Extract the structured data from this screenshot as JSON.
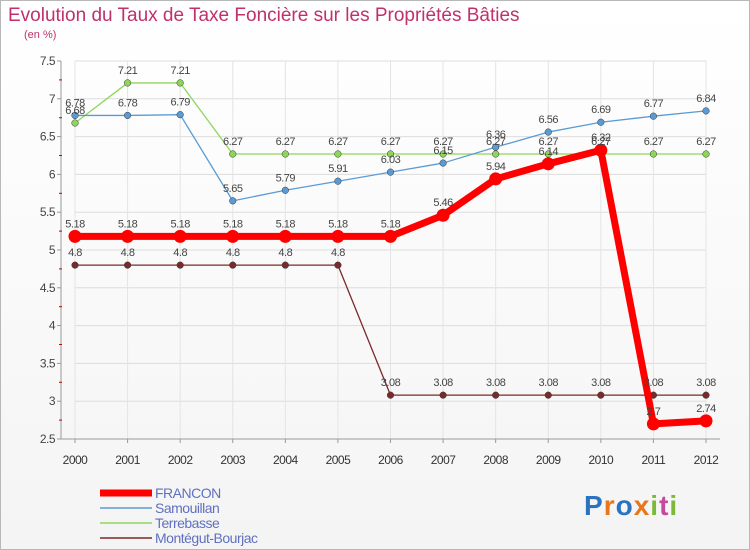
{
  "title": "Evolution du Taux de Taxe Foncière sur les Propriétés Bâties",
  "subtitle": "(en %)",
  "logo": {
    "letters": [
      "P",
      "r",
      "o",
      "x",
      "i",
      "t",
      "i"
    ],
    "colors": [
      "#2a73c0",
      "#e8771c",
      "#2a73c0",
      "#e8771c",
      "#7cb93a",
      "#c44b9c",
      "#7cb93a"
    ]
  },
  "chart_data": {
    "type": "line",
    "title": "Evolution du Taux de Taxe Foncière sur les Propriétés Bâties",
    "ylabel": "(en %)",
    "ylim": [
      2.5,
      7.5
    ],
    "yticks": [
      "2.5",
      "3",
      "3.5",
      "4",
      "4.5",
      "5",
      "5.5",
      "6",
      "6.5",
      "7",
      "7.5"
    ],
    "yticks_values": [
      2.5,
      3,
      3.5,
      4,
      4.5,
      5,
      5.5,
      6,
      6.5,
      7,
      7.5
    ],
    "categories": [
      "2000",
      "2001",
      "2002",
      "2003",
      "2004",
      "2005",
      "2006",
      "2007",
      "2008",
      "2009",
      "2010",
      "2011",
      "2012"
    ],
    "grid": true,
    "series": [
      {
        "name": "FRANCON",
        "color": "#ff0000",
        "values": [
          5.18,
          5.18,
          5.18,
          5.18,
          5.18,
          5.18,
          5.18,
          5.46,
          5.94,
          6.14,
          6.32,
          2.7,
          2.74
        ],
        "labels": [
          "5.18",
          "5.18",
          "5.18",
          "5.18",
          "5.18",
          "5.18",
          "5.18",
          "5.46",
          "5.94",
          "6.14",
          "6.32",
          "2.7",
          "2.74"
        ]
      },
      {
        "name": "Samouillan",
        "color": "#5b9bd5",
        "values": [
          6.78,
          6.78,
          6.79,
          5.65,
          5.79,
          5.91,
          6.03,
          6.15,
          6.36,
          6.56,
          6.69,
          6.77,
          6.84
        ],
        "labels": [
          "6.78",
          "6.78",
          "6.79",
          "5.65",
          "5.79",
          "5.91",
          "6.03",
          "6.15",
          "6.36",
          "6.56",
          "6.69",
          "6.77",
          "6.84"
        ]
      },
      {
        "name": "Terrebasse",
        "color": "#8ed65a",
        "values": [
          6.68,
          7.21,
          7.21,
          6.27,
          6.27,
          6.27,
          6.27,
          6.27,
          6.27,
          6.27,
          6.27,
          6.27,
          6.27
        ],
        "labels": [
          "6.68",
          "7.21",
          "7.21",
          "6.27",
          "6.27",
          "6.27",
          "6.27",
          "6.27",
          "6.27",
          "6.27",
          "6.27",
          "6.27",
          "6.27"
        ]
      },
      {
        "name": "Montégut-Bourjac",
        "color": "#7a2a2a",
        "values": [
          4.8,
          4.8,
          4.8,
          4.8,
          4.8,
          4.8,
          3.08,
          3.08,
          3.08,
          3.08,
          3.08,
          3.08,
          3.08
        ],
        "labels": [
          "4.8",
          "4.8",
          "4.8",
          "4.8",
          "4.8",
          "4.8",
          "3.08",
          "3.08",
          "3.08",
          "3.08",
          "3.08",
          "3.08",
          "3.08"
        ]
      }
    ]
  }
}
